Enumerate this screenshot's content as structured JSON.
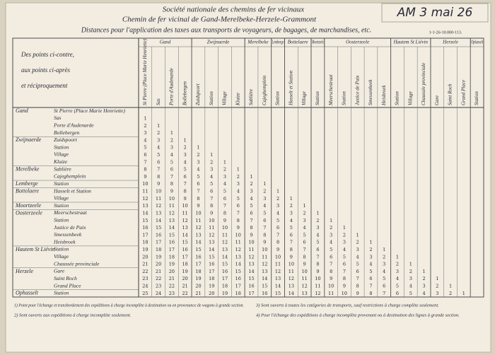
{
  "header": {
    "title": "Société nationale des chemins de fer vicinaux",
    "subtitle": "Chemin de fer vicinal de Gand-Merelbeke-Herzele-Grammont",
    "heading": "Distances pour l'application des taxes aux transports de voyageurs, de bagages, de marchandises, etc.",
    "print_ref": "1-1-26-10.000-113.",
    "stamp": "AM 3 mai 26"
  },
  "table": {
    "corner": [
      "Des points ci-contre,",
      "aux points ci-après",
      "et réciproquement"
    ],
    "rows": [
      {
        "group": "Gand",
        "stop": "St Pierre (Place Marie Henriette)",
        "distances": []
      },
      {
        "stop": "Sas",
        "distances": [
          1
        ]
      },
      {
        "stop": "Porte d'Audenarde",
        "distances": [
          2,
          1
        ]
      },
      {
        "stop": "Bollebergen",
        "distances": [
          3,
          2,
          1
        ]
      },
      {
        "group": "Zwijnaerde",
        "stop": "Zuidspoort",
        "distances": [
          4,
          3,
          2,
          1
        ]
      },
      {
        "stop": "Station",
        "distances": [
          5,
          4,
          3,
          2,
          1
        ]
      },
      {
        "stop": "Village",
        "distances": [
          6,
          5,
          4,
          3,
          2,
          1
        ]
      },
      {
        "stop": "Kluize",
        "distances": [
          7,
          6,
          5,
          4,
          3,
          2,
          1
        ]
      },
      {
        "group": "Merelbeke",
        "stop": "Sablière",
        "distances": [
          8,
          7,
          6,
          5,
          4,
          3,
          2,
          1
        ]
      },
      {
        "stop": "Cajeghemplein",
        "distances": [
          9,
          8,
          7,
          6,
          5,
          4,
          3,
          2,
          1
        ]
      },
      {
        "group": "Lemberge",
        "stop": "Station",
        "distances": [
          10,
          9,
          8,
          7,
          6,
          5,
          4,
          3,
          2,
          1
        ]
      },
      {
        "group": "Bottelaere",
        "stop": "Hasselt et Station",
        "distances": [
          11,
          10,
          9,
          8,
          7,
          6,
          5,
          4,
          3,
          2,
          1
        ]
      },
      {
        "stop": "Village",
        "distances": [
          12,
          11,
          10,
          9,
          8,
          7,
          6,
          5,
          4,
          3,
          2,
          1
        ]
      },
      {
        "group": "Moortzeele",
        "stop": "Station",
        "distances": [
          13,
          12,
          11,
          10,
          9,
          8,
          7,
          6,
          5,
          4,
          3,
          2,
          1
        ]
      },
      {
        "group": "Oosterzeele",
        "stop": "Meerschestraat",
        "distances": [
          14,
          13,
          12,
          11,
          10,
          9,
          8,
          7,
          6,
          5,
          4,
          3,
          2,
          1
        ]
      },
      {
        "stop": "Station",
        "distances": [
          15,
          14,
          13,
          12,
          11,
          10,
          9,
          8,
          7,
          6,
          5,
          4,
          3,
          2,
          1
        ]
      },
      {
        "stop": "Justice de Paix",
        "distances": [
          16,
          15,
          14,
          13,
          12,
          11,
          10,
          9,
          8,
          7,
          6,
          5,
          4,
          3,
          2,
          1
        ]
      },
      {
        "stop": "Smessenbeek",
        "distances": [
          17,
          16,
          15,
          14,
          13,
          12,
          11,
          10,
          9,
          8,
          7,
          6,
          5,
          4,
          3,
          2,
          1
        ]
      },
      {
        "stop": "Heisbroek",
        "distances": [
          18,
          17,
          16,
          15,
          14,
          13,
          12,
          11,
          10,
          9,
          8,
          7,
          6,
          5,
          4,
          3,
          2,
          1
        ]
      },
      {
        "group": "Hautem St Liévin",
        "stop": "Station",
        "distances": [
          19,
          18,
          17,
          16,
          15,
          14,
          13,
          12,
          11,
          10,
          9,
          8,
          7,
          6,
          5,
          4,
          3,
          2,
          1
        ]
      },
      {
        "stop": "Village",
        "distances": [
          20,
          19,
          18,
          17,
          16,
          15,
          14,
          13,
          12,
          11,
          10,
          9,
          8,
          7,
          6,
          5,
          4,
          3,
          2,
          1
        ]
      },
      {
        "stop": "Chaussée provinciale",
        "distances": [
          21,
          20,
          19,
          18,
          17,
          16,
          15,
          14,
          13,
          12,
          11,
          10,
          9,
          8,
          7,
          6,
          5,
          4,
          3,
          2,
          1
        ]
      },
      {
        "group": "Herzele",
        "stop": "Gare",
        "distances": [
          22,
          21,
          20,
          19,
          18,
          17,
          16,
          15,
          14,
          13,
          12,
          11,
          10,
          9,
          8,
          7,
          6,
          5,
          4,
          3,
          2,
          1
        ]
      },
      {
        "stop": "Saint Roch",
        "distances": [
          23,
          22,
          21,
          20,
          19,
          18,
          17,
          16,
          15,
          14,
          13,
          12,
          11,
          10,
          9,
          8,
          7,
          6,
          5,
          4,
          3,
          2,
          1
        ]
      },
      {
        "stop": "Grand Place",
        "distances": [
          24,
          23,
          22,
          21,
          20,
          19,
          18,
          17,
          16,
          15,
          14,
          13,
          12,
          11,
          10,
          9,
          8,
          7,
          6,
          5,
          4,
          3,
          2,
          1
        ]
      },
      {
        "group": "Ophasselt",
        "stop": "Station",
        "distances": [
          25,
          24,
          23,
          22,
          21,
          20,
          19,
          18,
          17,
          16,
          15,
          14,
          13,
          12,
          11,
          10,
          9,
          8,
          7,
          6,
          5,
          4,
          3,
          2,
          1
        ]
      }
    ]
  },
  "footnotes": [
    "1) Point pour l'échange et transbordement des expéditions à charge incomplète à destination ou en provenance de wagons à grande section.",
    "2) Sont ouverts aux expéditions à charge incomplète seulement.",
    "3) Sont ouverts à toutes les catégories de transports, sauf restrictions à charge complète seulement.",
    "4) Pour l'échange des expéditions à charge incomplète provenant ou à destination des lignes à grande section."
  ]
}
